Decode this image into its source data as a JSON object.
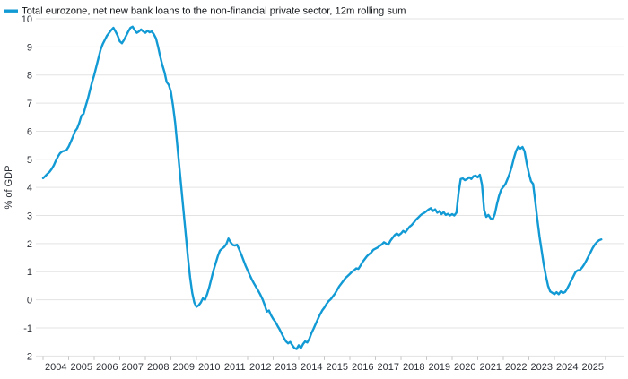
{
  "legend": {
    "label": "Total eurozone, net new bank loans to the non-financial private sector, 12m rolling sum"
  },
  "colors": {
    "line": "#129ad5",
    "grid": "#e3e3e3",
    "tick": "#c6c6c6",
    "text": "#2b2f36",
    "title_text": "#111418",
    "background": "#ffffff"
  },
  "chart_data": {
    "type": "line",
    "title": "Total eurozone, net new bank loans to the non-financial private sector, 12m rolling sum",
    "xlabel": "",
    "ylabel": "% of GDP",
    "ylim": [
      -2,
      10
    ],
    "y_ticks": [
      -2,
      -1,
      0,
      1,
      2,
      3,
      4,
      5,
      6,
      7,
      8,
      9,
      10
    ],
    "x_tick_labels": [
      "2004",
      "2005",
      "2006",
      "2007",
      "2008",
      "2009",
      "2010",
      "2011",
      "2012",
      "2013",
      "2014",
      "2015",
      "2016",
      "2017",
      "2018",
      "2019",
      "2020",
      "2021",
      "2022",
      "2023",
      "2024",
      "2025"
    ],
    "grid": "horizontal",
    "legend_position": "top-left",
    "frequency": "monthly",
    "x_start": {
      "year": 2004,
      "month": 1
    },
    "x_end": {
      "year": 2025,
      "month": 11
    },
    "series": [
      {
        "name": "Total eurozone, net new bank loans to the non-financial private sector, 12m rolling sum",
        "values": [
          4.33,
          4.4,
          4.48,
          4.55,
          4.65,
          4.78,
          4.95,
          5.1,
          5.22,
          5.28,
          5.3,
          5.33,
          5.45,
          5.62,
          5.8,
          6.0,
          6.1,
          6.3,
          6.55,
          6.62,
          6.9,
          7.15,
          7.45,
          7.75,
          8.0,
          8.3,
          8.6,
          8.9,
          9.1,
          9.25,
          9.4,
          9.5,
          9.6,
          9.68,
          9.55,
          9.4,
          9.2,
          9.13,
          9.25,
          9.4,
          9.55,
          9.68,
          9.72,
          9.6,
          9.5,
          9.55,
          9.62,
          9.55,
          9.5,
          9.58,
          9.52,
          9.55,
          9.45,
          9.3,
          9.0,
          8.65,
          8.35,
          8.1,
          7.75,
          7.65,
          7.4,
          6.9,
          6.3,
          5.5,
          4.7,
          3.9,
          3.1,
          2.3,
          1.5,
          0.8,
          0.25,
          -0.1,
          -0.25,
          -0.2,
          -0.1,
          0.05,
          0.0,
          0.2,
          0.45,
          0.75,
          1.05,
          1.3,
          1.55,
          1.75,
          1.82,
          1.88,
          1.98,
          2.18,
          2.05,
          1.95,
          1.93,
          1.96,
          1.8,
          1.62,
          1.42,
          1.22,
          1.05,
          0.88,
          0.72,
          0.58,
          0.45,
          0.32,
          0.18,
          0.02,
          -0.18,
          -0.42,
          -0.38,
          -0.55,
          -0.68,
          -0.78,
          -0.92,
          -1.05,
          -1.2,
          -1.35,
          -1.48,
          -1.55,
          -1.5,
          -1.62,
          -1.72,
          -1.75,
          -1.62,
          -1.72,
          -1.58,
          -1.48,
          -1.52,
          -1.38,
          -1.18,
          -1.02,
          -0.85,
          -0.68,
          -0.52,
          -0.38,
          -0.28,
          -0.15,
          -0.05,
          0.02,
          0.12,
          0.22,
          0.35,
          0.48,
          0.58,
          0.68,
          0.78,
          0.85,
          0.92,
          1.0,
          1.05,
          1.12,
          1.1,
          1.22,
          1.35,
          1.45,
          1.55,
          1.62,
          1.68,
          1.78,
          1.82,
          1.86,
          1.92,
          1.97,
          2.05,
          2.0,
          1.96,
          2.1,
          2.2,
          2.3,
          2.36,
          2.3,
          2.36,
          2.45,
          2.4,
          2.5,
          2.6,
          2.66,
          2.75,
          2.85,
          2.92,
          3.0,
          3.06,
          3.1,
          3.16,
          3.22,
          3.26,
          3.16,
          3.22,
          3.1,
          3.16,
          3.05,
          3.12,
          3.02,
          3.06,
          3.0,
          3.05,
          3.0,
          3.1,
          3.8,
          4.3,
          4.32,
          4.26,
          4.3,
          4.36,
          4.3,
          4.4,
          4.42,
          4.36,
          4.45,
          4.1,
          3.2,
          2.95,
          3.02,
          2.9,
          2.86,
          3.05,
          3.4,
          3.7,
          3.92,
          4.02,
          4.12,
          4.3,
          4.5,
          4.75,
          5.05,
          5.3,
          5.45,
          5.38,
          5.44,
          5.28,
          4.85,
          4.5,
          4.22,
          4.12,
          3.5,
          2.85,
          2.25,
          1.75,
          1.25,
          0.85,
          0.5,
          0.3,
          0.25,
          0.2,
          0.27,
          0.2,
          0.3,
          0.24,
          0.28,
          0.4,
          0.55,
          0.7,
          0.85,
          1.0,
          1.05,
          1.06,
          1.15,
          1.26,
          1.4,
          1.55,
          1.7,
          1.85,
          1.97,
          2.06,
          2.12,
          2.15
        ]
      }
    ]
  }
}
